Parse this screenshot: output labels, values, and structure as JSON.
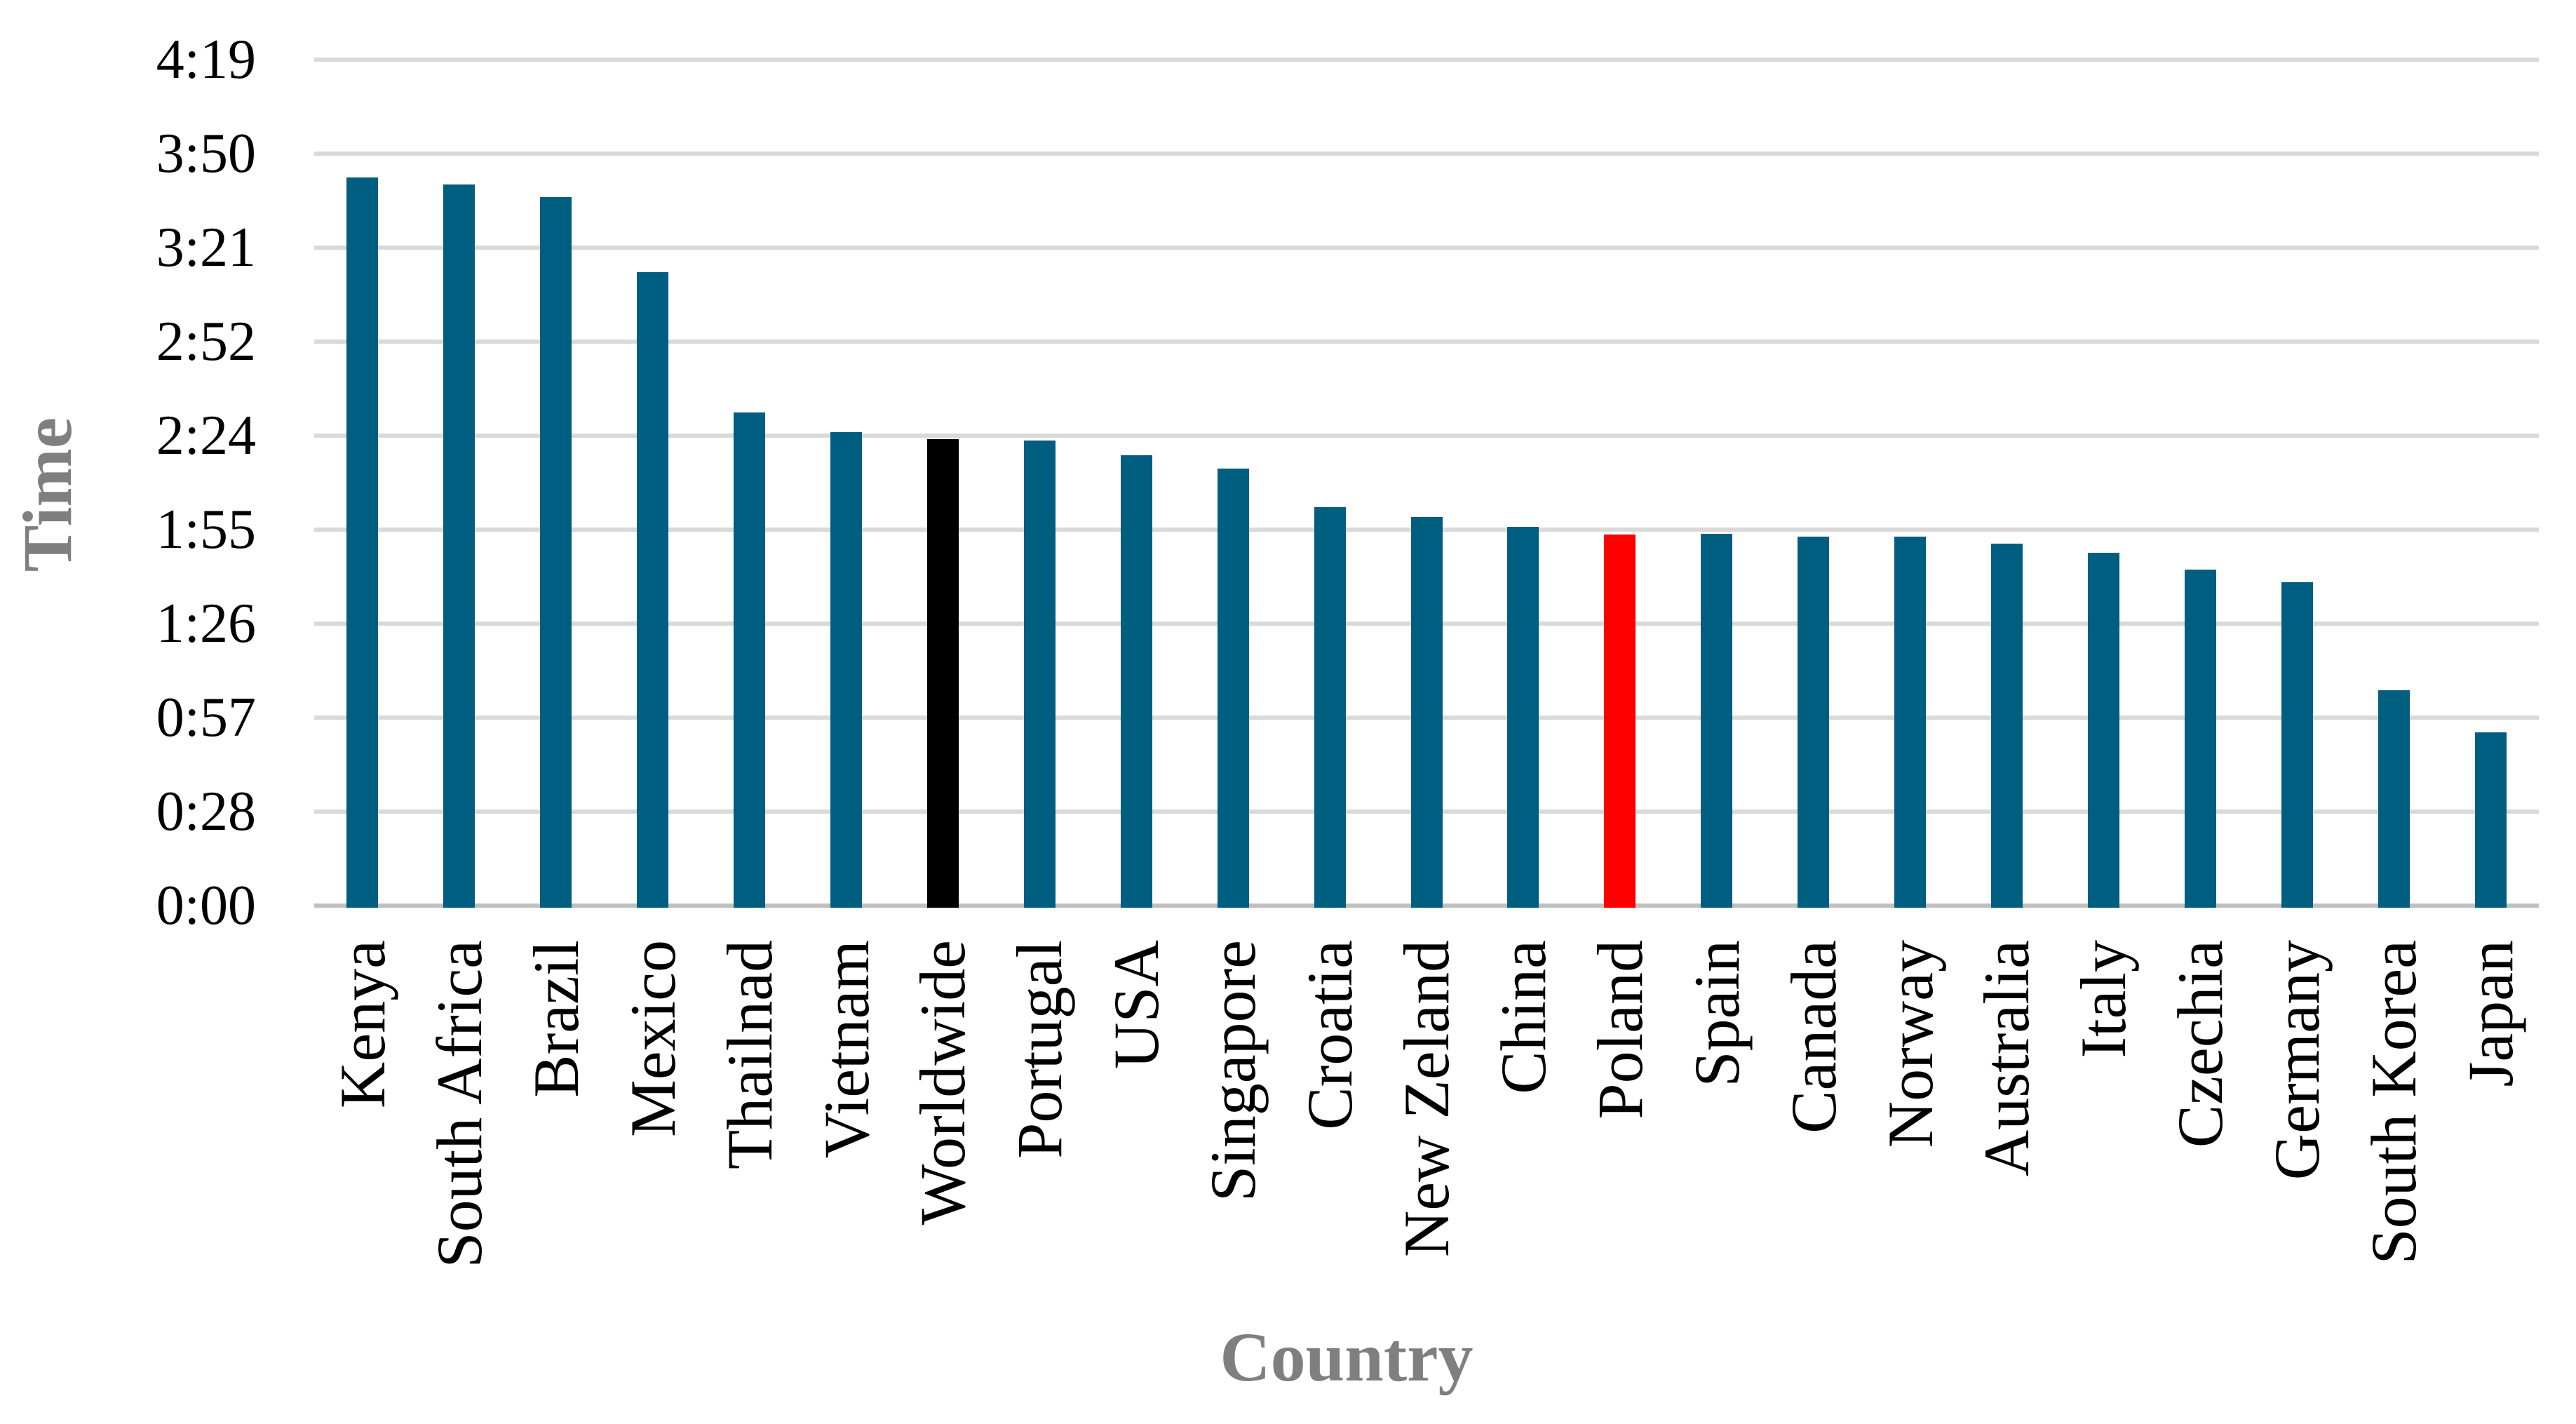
{
  "chart_data": {
    "type": "bar",
    "title": "",
    "xlabel": "Country",
    "ylabel": "Time",
    "categories": [
      "Kenya",
      "South Africa",
      "Brazil",
      "Mexico",
      "Thailnad",
      "Vietnam",
      "Worldwide",
      "Portugal",
      "USA",
      "Singapore",
      "Croatia",
      "New Zeland",
      "China",
      "Poland",
      "Spain",
      "Canada",
      "Norway",
      "Australia",
      "Italy",
      "Czechia",
      "Germany",
      "South Korea",
      "Japan"
    ],
    "values_time": [
      "3:43",
      "3:41",
      "3:37",
      "3:14",
      "2:31",
      "2:25",
      "2:23",
      "2:23",
      "2:18",
      "2:14",
      "2:02",
      "1:59",
      "1:56",
      "1:54",
      "1:54",
      "1:53",
      "1:53",
      "1:51",
      "1:48",
      "1:43",
      "1:39",
      "1:06",
      "0:53"
    ],
    "values_minutes": [
      223,
      221,
      217,
      194,
      151,
      145,
      143,
      142.5,
      138,
      134,
      122,
      119,
      116,
      113.8,
      114,
      113,
      113,
      111,
      108,
      103,
      99,
      66,
      53
    ],
    "y_tick_labels": [
      "4:19",
      "3:50",
      "3:21",
      "2:52",
      "2:24",
      "1:55",
      "1:26",
      "0:57",
      "0:28",
      "0:00"
    ],
    "y_axis_max_minutes": 259.2,
    "grid": true,
    "legend": false,
    "highlight_bars": {
      "Worldwide": "#000000",
      "Poland": "#ff0000"
    }
  },
  "colors": {
    "bar_default": "#005e81",
    "bar_worldwide": "#000000",
    "bar_poland": "#ff0000",
    "gridline": "#d9d9d9",
    "axis_line": "#bfbfbf",
    "axis_title_gray": "#7f7f7f",
    "tick_text": "#000000",
    "background": "#ffffff"
  }
}
